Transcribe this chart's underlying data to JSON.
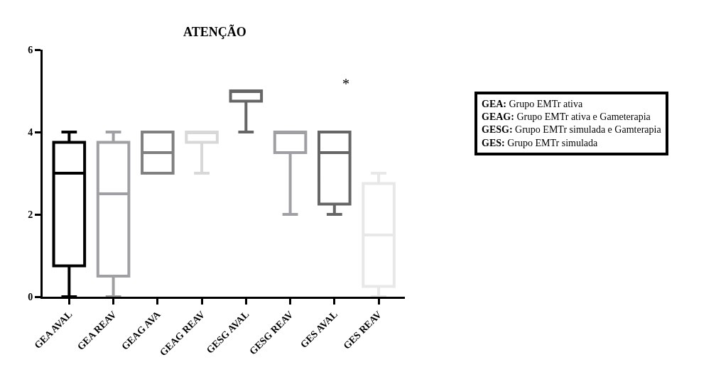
{
  "chart_data": {
    "type": "box",
    "title": "ATENÇÃO",
    "categories": [
      "GEA AVAL",
      "GEA REAV",
      "GEAG AVA",
      "GEAG REAV",
      "GESG AVAL",
      "GESG REAV",
      "GES AVAL",
      "GES REAV"
    ],
    "colors": [
      "#000000",
      "#a0a0a4",
      "#808080",
      "#d8d8d8",
      "#666666",
      "#a0a0a4",
      "#666666",
      "#e8e8e8"
    ],
    "boxes": [
      {
        "low": 0,
        "q1": 0.75,
        "median": 3,
        "q3": 3.75,
        "high": 4
      },
      {
        "low": 0,
        "q1": 0.5,
        "median": 2.5,
        "q3": 3.75,
        "high": 4
      },
      {
        "low": 3,
        "q1": 3,
        "median": 3.5,
        "q3": 4,
        "high": 4
      },
      {
        "low": 3,
        "q1": 3.75,
        "median": 4,
        "q3": 4,
        "high": 4
      },
      {
        "low": 4,
        "q1": 4.75,
        "median": 5,
        "q3": 5,
        "high": 5
      },
      {
        "low": 2,
        "q1": 3.5,
        "median": 4,
        "q3": 4,
        "high": 4
      },
      {
        "low": 2,
        "q1": 2.25,
        "median": 3.5,
        "q3": 4,
        "high": 4
      },
      {
        "low": 0,
        "q1": 0.25,
        "median": 1.5,
        "q3": 2.75,
        "high": 3
      }
    ],
    "ylim": [
      0,
      6
    ],
    "yticks": [
      0,
      2,
      4,
      6
    ],
    "annotations": [
      "*",
      "GEA: Grupo EMTr ativa",
      "GEAG: Grupo EMTr ativa e Gameterapia",
      "GESG: Grupo EMTr simulada e Gamterapia",
      "GES: Grupo EMTr simulada"
    ]
  }
}
